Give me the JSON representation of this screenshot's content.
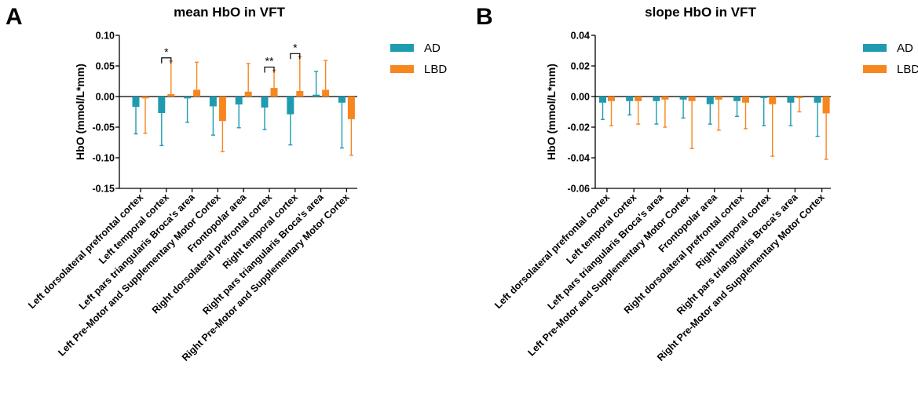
{
  "chart_data": [
    {
      "panel_letter": "A",
      "type": "bar",
      "title": "mean HbO in VFT",
      "ylabel": "HbO (mmol/L*mm)",
      "xlabel": "",
      "ylim": [
        -0.15,
        0.1
      ],
      "yticks": [
        -0.15,
        -0.1,
        -0.05,
        0.0,
        0.05,
        0.1
      ],
      "ytick_labels": [
        "-0.15",
        "-0.10",
        "-0.05",
        "0.00",
        "0.05",
        "0.10"
      ],
      "categories": [
        "Left dorsolateral prefrontal cortex",
        "Left temporal cortex",
        "Left pars triangularis Broca's area",
        "Left Pre-Motor and Supplementary Motor Cortex",
        "Frontopolar area",
        "Right dorsolateral prefrontal cortex",
        "Right temporal cortex",
        "Right pars triangularis Broca's area",
        "Right Pre-Motor and Supplementary Motor Cortex"
      ],
      "series": [
        {
          "name": "AD",
          "color": "#1f9bb0",
          "values": [
            -0.017,
            -0.027,
            -0.003,
            -0.016,
            -0.013,
            -0.018,
            -0.029,
            0.003,
            -0.01
          ],
          "errors": [
            0.044,
            0.053,
            0.039,
            0.047,
            0.038,
            0.036,
            0.05,
            0.038,
            0.074
          ]
        },
        {
          "name": "LBD",
          "color": "#f7861f",
          "values": [
            -0.003,
            0.004,
            0.011,
            -0.04,
            0.008,
            0.014,
            0.009,
            0.011,
            -0.037
          ],
          "errors": [
            0.057,
            0.054,
            0.045,
            0.05,
            0.046,
            0.029,
            0.056,
            0.048,
            0.059
          ]
        }
      ],
      "significance": [
        {
          "category_index": 1,
          "label": "*"
        },
        {
          "category_index": 5,
          "label": "**"
        },
        {
          "category_index": 6,
          "label": "*"
        }
      ],
      "legend_position": "top-right"
    },
    {
      "panel_letter": "B",
      "type": "bar",
      "title": "slope HbO in VFT",
      "ylabel": "HbO (mmol/L*mm)",
      "xlabel": "",
      "ylim": [
        -0.06,
        0.04
      ],
      "yticks": [
        -0.06,
        -0.04,
        -0.02,
        0.0,
        0.02,
        0.04
      ],
      "ytick_labels": [
        "-0.06",
        "-0.04",
        "-0.02",
        "0.00",
        "0.02",
        "0.04"
      ],
      "categories": [
        "Left dorsolateral prefrontal cortex",
        "Left temporal cortex",
        "Left pars triangularis Broca's area",
        "Left Pre-Motor and Supplementary Motor Cortex",
        "Frontopolar area",
        "Right dorsolateral prefrontal cortex",
        "Right temporal cortex",
        "Right pars triangularis Broca's area",
        "Right Pre-Motor and Supplementary Motor Cortex"
      ],
      "series": [
        {
          "name": "AD",
          "color": "#1f9bb0",
          "values": [
            -0.004,
            -0.003,
            -0.003,
            -0.002,
            -0.005,
            -0.003,
            -0.001,
            -0.004,
            -0.004
          ],
          "errors": [
            0.011,
            0.009,
            0.015,
            0.012,
            0.013,
            0.01,
            0.018,
            0.015,
            0.022
          ]
        },
        {
          "name": "LBD",
          "color": "#f7861f",
          "values": [
            -0.003,
            -0.003,
            -0.002,
            -0.003,
            -0.002,
            -0.004,
            -0.005,
            -0.001,
            -0.011
          ],
          "errors": [
            0.016,
            0.015,
            0.018,
            0.031,
            0.02,
            0.017,
            0.034,
            0.009,
            0.03
          ]
        }
      ],
      "significance": [],
      "legend_position": "top-right"
    }
  ]
}
